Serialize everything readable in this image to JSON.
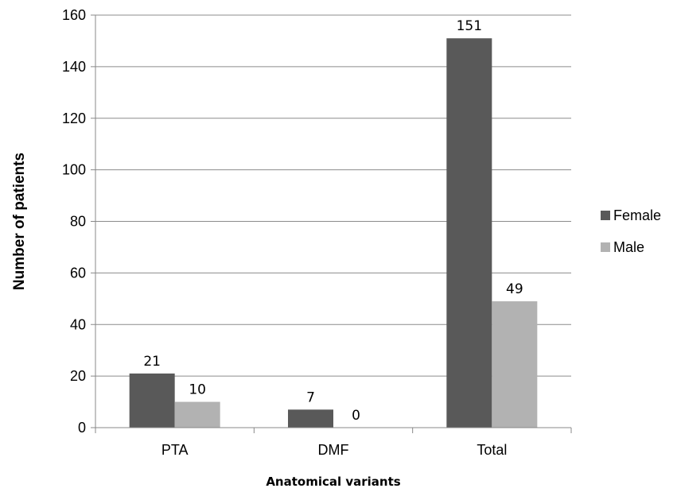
{
  "chart_data": {
    "type": "bar",
    "categories": [
      "PTA",
      "DMF",
      "Total"
    ],
    "series": [
      {
        "name": "Female",
        "values": [
          21,
          7,
          151
        ],
        "color": "#595959"
      },
      {
        "name": "Male",
        "values": [
          10,
          0,
          49
        ],
        "color": "#b2b2b2"
      }
    ],
    "xlabel": "Anatomical variants",
    "ylabel": "Number of patients",
    "ylim": [
      0,
      160
    ],
    "yticks": [
      0,
      20,
      40,
      60,
      80,
      100,
      120,
      140,
      160
    ],
    "grid": true,
    "legend_position": "right"
  }
}
